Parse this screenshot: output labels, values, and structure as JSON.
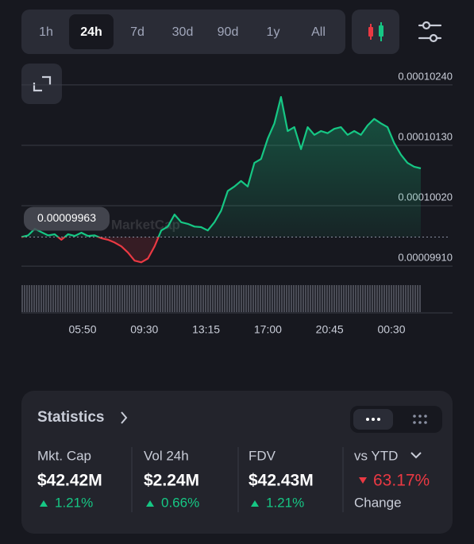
{
  "tabs": [
    "1h",
    "24h",
    "7d",
    "30d",
    "90d",
    "1y",
    "All"
  ],
  "selected_tab": 1,
  "chart_data": {
    "type": "line",
    "values": [
      9.963e-05,
      9.966e-05,
      9.978e-05,
      9.972e-05,
      9.966e-05,
      9.968e-05,
      9.958e-05,
      9.968e-05,
      9.965e-05,
      9.971e-05,
      9.965e-05,
      9.966e-05,
      9.961e-05,
      9.958e-05,
      9.953e-05,
      9.946e-05,
      9.935e-05,
      9.92e-05,
      9.917e-05,
      9.924e-05,
      9.946e-05,
      9.975e-05,
      9.982e-05,
      0.00010004,
      9.99e-05,
      9.987e-05,
      9.982e-05,
      9.981e-05,
      9.975e-05,
      9.99e-05,
      0.00010011,
      0.00010047,
      0.00010055,
      0.00010065,
      0.00010055,
      0.00010098,
      0.00010105,
      0.00010142,
      0.0001017,
      0.00010218,
      0.00010156,
      0.00010163,
      0.00010123,
      0.00010163,
      0.00010149,
      0.00010156,
      0.00010152,
      0.0001016,
      0.00010163,
      0.00010149,
      0.00010156,
      0.00010149,
      0.00010166,
      0.00010178,
      0.0001017,
      0.00010163,
      0.00010134,
      0.00010113,
      0.00010098,
      0.00010091,
      0.00010088
    ],
    "color_up": "#16c784",
    "color_down": "#ea3943",
    "baseline": 9.963e-05,
    "ylim": [
      9.903e-05,
      0.00010273
    ],
    "yticks": [
      {
        "value": 0.0001024,
        "label": "0.00010240"
      },
      {
        "value": 0.0001013,
        "label": "0.00010130"
      },
      {
        "value": 0.0001002,
        "label": "0.00010020"
      },
      {
        "value": 9.91e-05,
        "label": "0.00009910"
      }
    ],
    "grid": true,
    "xtick_labels": [
      "05:50",
      "09:30",
      "13:15",
      "17:00",
      "20:45",
      "00:30"
    ],
    "watermark": "MarketCap"
  },
  "statistics": {
    "title": "Statistics",
    "items": [
      {
        "label": "Mkt. Cap",
        "value": "$42.42M",
        "change": "1.21%",
        "direction": "up"
      },
      {
        "label": "Vol 24h",
        "value": "$2.24M",
        "change": "0.66%",
        "direction": "up"
      },
      {
        "label": "FDV",
        "value": "$42.43M",
        "change": "1.21%",
        "direction": "up"
      }
    ],
    "ytd": {
      "label": "vs YTD",
      "value": "63.17%",
      "direction": "down",
      "sublabel": "Change"
    }
  }
}
